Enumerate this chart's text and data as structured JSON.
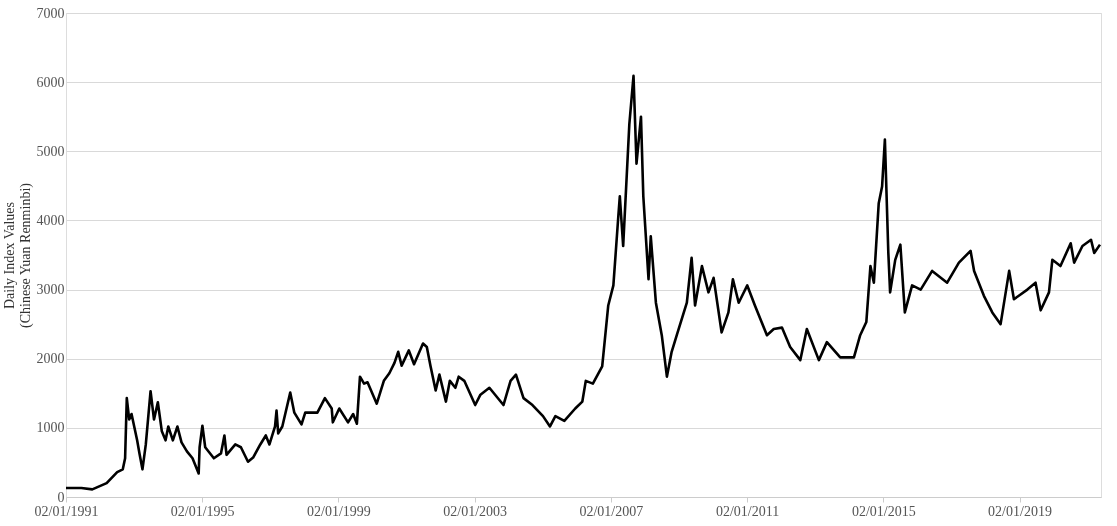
{
  "chart_data": {
    "type": "line",
    "ylabel": "Daily Index Values\n(Chinese Yuan Renminbi)",
    "x": [
      "1991-01-02",
      "1991-06-16",
      "1991-10-11",
      "1992-03-13",
      "1992-07-04",
      "1992-09-02",
      "1992-09-27",
      "1992-10-15",
      "1992-11-10",
      "1992-12-05",
      "1993-02-03",
      "1993-02-28",
      "1993-04-01",
      "1993-05-07",
      "1993-06-27",
      "1993-08-03",
      "1993-09-13",
      "1993-10-26",
      "1993-12-05",
      "1994-01-03",
      "1994-02-21",
      "1994-04-11",
      "1994-05-25",
      "1994-07-22",
      "1994-09-20",
      "1994-11-25",
      "1994-12-05",
      "1995-01-04",
      "1995-02-03",
      "1995-05-07",
      "1995-07-22",
      "1995-08-28",
      "1995-09-20",
      "1995-12-23",
      "1996-02-21",
      "1996-05-07",
      "1996-07-01",
      "1996-09-16",
      "1996-11-14",
      "1996-12-23",
      "1997-02-21",
      "1997-03-09",
      "1997-03-27",
      "1997-05-10",
      "1997-08-03",
      "1997-09-16",
      "1997-12-02",
      "1998-01-11",
      "1998-05-21",
      "1998-08-10",
      "1998-10-22",
      "1998-11-03",
      "1999-01-11",
      "1999-04-15",
      "1999-06-09",
      "1999-07-19",
      "1999-08-21",
      "1999-10-04",
      "1999-11-10",
      "2000-02-17",
      "2000-05-03",
      "2000-07-01",
      "2000-08-25",
      "2000-10-04",
      "2000-11-10",
      "2001-01-26",
      "2001-03-23",
      "2001-06-27",
      "2001-08-07",
      "2001-09-16",
      "2001-11-10",
      "2001-12-20",
      "2002-02-28",
      "2002-04-11",
      "2002-06-09",
      "2002-07-15",
      "2002-09-13",
      "2003-01-08",
      "2003-03-05",
      "2003-06-09",
      "2003-11-07",
      "2004-01-22",
      "2004-03-20",
      "2004-06-09",
      "2004-09-13",
      "2005-01-04",
      "2005-03-20",
      "2005-05-17",
      "2005-08-21",
      "2005-12-16",
      "2006-03-02",
      "2006-04-08",
      "2006-06-23",
      "2006-10-01",
      "2006-12-05",
      "2007-01-29",
      "2007-03-23",
      "2007-04-08",
      "2007-05-14",
      "2007-07-19",
      "2007-09-02",
      "2007-10-04",
      "2007-11-21",
      "2007-12-16",
      "2008-02-10",
      "2008-03-05",
      "2008-04-29",
      "2008-07-01",
      "2008-08-25",
      "2008-10-15",
      "2008-12-09",
      "2009-03-27",
      "2009-05-17",
      "2009-06-23",
      "2009-09-05",
      "2009-11-14",
      "2010-01-08",
      "2010-04-04",
      "2010-06-16",
      "2010-08-03",
      "2010-10-04",
      "2011-01-04",
      "2011-03-27",
      "2011-08-03",
      "2011-10-15",
      "2012-01-11",
      "2012-04-08",
      "2012-07-26",
      "2012-10-04",
      "2013-02-10",
      "2013-05-07",
      "2013-09-27",
      "2014-02-21",
      "2014-04-29",
      "2014-07-04",
      "2014-08-17",
      "2014-09-23",
      "2014-11-14",
      "2014-12-20",
      "2015-01-19",
      "2015-02-25",
      "2015-03-16",
      "2015-05-10",
      "2015-07-04",
      "2015-08-21",
      "2015-11-07",
      "2016-02-07",
      "2016-06-09",
      "2016-11-17",
      "2017-03-23",
      "2017-07-26",
      "2017-09-02",
      "2017-12-16",
      "2018-03-16",
      "2018-06-13",
      "2018-09-13",
      "2018-11-03",
      "2019-03-27",
      "2019-06-23",
      "2019-08-17",
      "2019-11-14",
      "2019-12-20",
      "2020-03-16",
      "2020-07-04",
      "2020-08-10",
      "2020-11-07",
      "2021-02-07",
      "2021-03-13",
      "2021-05-14"
    ],
    "series": [
      {
        "color": "#000000",
        "values": [
          130,
          130,
          110,
          200,
          360,
          400,
          560,
          1430,
          1120,
          1200,
          820,
          630,
          400,
          760,
          1530,
          1120,
          1370,
          950,
          820,
          1020,
          820,
          1020,
          790,
          660,
          560,
          340,
          720,
          1030,
          720,
          560,
          630,
          890,
          610,
          760,
          720,
          510,
          570,
          760,
          890,
          760,
          1020,
          1250,
          920,
          1020,
          1510,
          1220,
          1050,
          1220,
          1220,
          1430,
          1280,
          1080,
          1280,
          1080,
          1200,
          1060,
          1740,
          1640,
          1660,
          1350,
          1680,
          1790,
          1940,
          2100,
          1900,
          2120,
          1920,
          2220,
          2170,
          1890,
          1540,
          1770,
          1380,
          1680,
          1580,
          1740,
          1680,
          1330,
          1480,
          1580,
          1330,
          1680,
          1770,
          1430,
          1330,
          1170,
          1020,
          1170,
          1100,
          1280,
          1380,
          1680,
          1640,
          1890,
          2770,
          3060,
          4060,
          4350,
          3630,
          5390,
          6090,
          4820,
          5500,
          4350,
          3150,
          3770,
          2810,
          2340,
          1740,
          2100,
          2340,
          2810,
          3460,
          2770,
          3340,
          2960,
          3170,
          2380,
          2670,
          3150,
          2810,
          3060,
          2770,
          2340,
          2430,
          2450,
          2170,
          1980,
          2430,
          1980,
          2240,
          2020,
          2020,
          2340,
          2530,
          3340,
          3100,
          4250,
          4490,
          5170,
          3530,
          2960,
          3430,
          3650,
          2670,
          3060,
          3000,
          3270,
          3100,
          3390,
          3560,
          3270,
          2910,
          2670,
          2500,
          3270,
          2860,
          3000,
          3100,
          2700,
          2960,
          3430,
          3340,
          3670,
          3390,
          3630,
          3720,
          3530,
          3650
        ]
      }
    ],
    "xlim": [
      "1991-01-02",
      "2021-05-25"
    ],
    "xticks": [
      {
        "value": "1991-01-02",
        "label": "02/01/1991"
      },
      {
        "value": "1995-01-02",
        "label": "02/01/1995"
      },
      {
        "value": "1999-01-02",
        "label": "02/01/1999"
      },
      {
        "value": "2003-01-02",
        "label": "02/01/2003"
      },
      {
        "value": "2007-01-02",
        "label": "02/01/2007"
      },
      {
        "value": "2011-01-02",
        "label": "02/01/2011"
      },
      {
        "value": "2015-01-02",
        "label": "02/01/2015"
      },
      {
        "value": "2019-01-02",
        "label": "02/01/2019"
      }
    ],
    "ylim": [
      0,
      7000
    ],
    "yticks": [
      0,
      1000,
      2000,
      3000,
      4000,
      5000,
      6000,
      7000
    ],
    "grid": "y",
    "legend": false,
    "marker": "none",
    "line_style": "solid"
  }
}
